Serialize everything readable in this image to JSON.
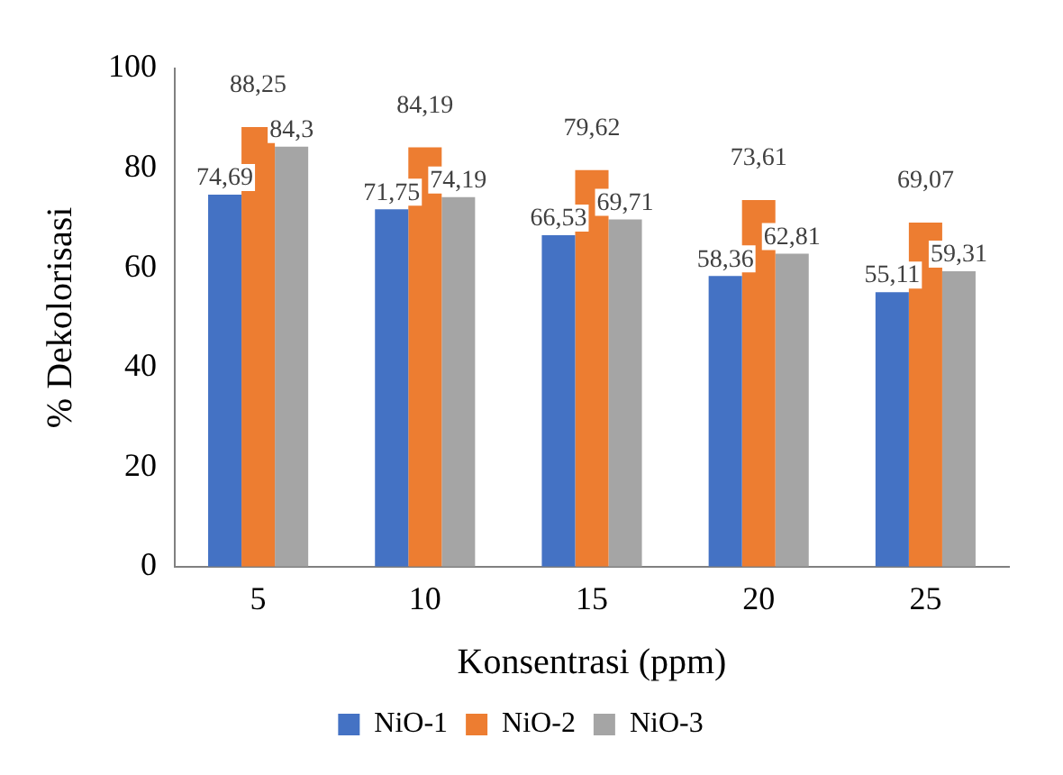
{
  "chart_data": {
    "type": "bar",
    "xlabel": "Konsentrasi (ppm)",
    "ylabel": "% Dekolorisasi",
    "categories": [
      "5",
      "10",
      "15",
      "20",
      "25"
    ],
    "series": [
      {
        "name": "NiO-1",
        "color": "#4472c4",
        "values": [
          74.69,
          71.75,
          66.53,
          58.36,
          55.11
        ],
        "value_labels": [
          "74,69",
          "71,75",
          "66,53",
          "58,36",
          "55,11"
        ]
      },
      {
        "name": "NiO-2",
        "color": "#ed7d31",
        "values": [
          88.25,
          84.19,
          79.62,
          73.61,
          69.07
        ],
        "value_labels": [
          "88,25",
          "84,19",
          "79,62",
          "73,61",
          "69,07"
        ]
      },
      {
        "name": "NiO-3",
        "color": "#a5a5a5",
        "values": [
          84.3,
          74.19,
          69.71,
          62.81,
          59.31
        ],
        "value_labels": [
          "84,3",
          "74,19",
          "69,71",
          "62,81",
          "59,31"
        ]
      }
    ],
    "ylim": [
      0,
      100
    ],
    "yticks": [
      0,
      20,
      40,
      60,
      80,
      100
    ],
    "grid": false,
    "legend": "bottom"
  }
}
